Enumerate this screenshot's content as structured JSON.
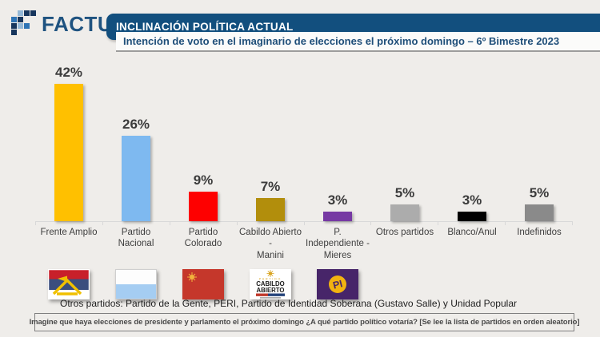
{
  "logo": {
    "text": "FACTUM",
    "colors": {
      "dark": "#17365d",
      "medium": "#2e74b5",
      "light": "#94b8d7",
      "text": "#1f5380"
    }
  },
  "header": {
    "title": "INCLINACIÓN POLÍTICA ACTUAL",
    "subtitle": "Intención de voto en el imaginario de elecciones el próximo domingo – 6º Bimestre 2023",
    "bar_color": "#124f7e",
    "subtitle_color": "#1e4e79"
  },
  "chart_data": {
    "type": "bar",
    "title": "Intención de voto en el imaginario de elecciones el próximo domingo – 6º Bimestre 2023",
    "categories": [
      "Frente Amplio",
      "Partido Nacional",
      "Partido Colorado",
      "Cabildo Abierto - Manini",
      "P. Independiente - Mieres",
      "Otros partidos",
      "Blanco/Anul",
      "Indefinidos"
    ],
    "category_lines": [
      [
        "Frente Amplio"
      ],
      [
        "Partido Nacional"
      ],
      [
        "Partido Colorado"
      ],
      [
        "Cabildo Abierto -",
        "Manini"
      ],
      [
        "P. Independiente -",
        "Mieres"
      ],
      [
        "Otros partidos"
      ],
      [
        "Blanco/Anul"
      ],
      [
        "Indefinidos"
      ]
    ],
    "values": [
      42,
      26,
      9,
      7,
      3,
      5,
      3,
      5
    ],
    "value_labels": [
      "42%",
      "26%",
      "9%",
      "7%",
      "3%",
      "5%",
      "3%",
      "5%"
    ],
    "colors": [
      "#ffc000",
      "#7eb9f0",
      "#fe0000",
      "#b28e0c",
      "#7639a3",
      "#acacac",
      "#000000",
      "#8a8a8a"
    ],
    "flag_keys": [
      "frente_amplio",
      "partido_nacional",
      "partido_colorado",
      "cabildo_abierto",
      "partido_independiente",
      null,
      null,
      null
    ],
    "unit": "%",
    "ylim": [
      0,
      45
    ],
    "grid": false,
    "legend": false,
    "axis_color": "#d8d8d8"
  },
  "flags": {
    "frente_amplio": {
      "red": "#c8202a",
      "blue": "#3b4e7e",
      "white": "#ffffff",
      "yellow": "#f0c000"
    },
    "partido_nacional": {
      "white": "#fdfdfd",
      "blue": "#a5cdf2"
    },
    "partido_colorado": {
      "red": "#c5372b",
      "sun": "#f2b33d"
    },
    "cabildo_abierto": {
      "bg": "#ffffff",
      "text": "#1a1a1a",
      "gold": "#d9a421",
      "red": "#c0392b",
      "blue": "#27457c",
      "line1": "PARTIDO",
      "line2": "CABILDO",
      "line3": "ABIERTO"
    },
    "partido_independiente": {
      "bg": "#472569",
      "circle": "#f2b310",
      "text": "PI"
    }
  },
  "notes": {
    "otros": "Otros partidos: Partido de la Gente, PERI, Partido de Identidad Soberana (Gustavo Salle) y Unidad Popular"
  },
  "question_box": {
    "text": "Imagine que haya elecciones de presidente y parlamento el próximo domingo ¿A qué partido político votaría? [Se lee la lista de partidos en orden aleatorio]"
  }
}
